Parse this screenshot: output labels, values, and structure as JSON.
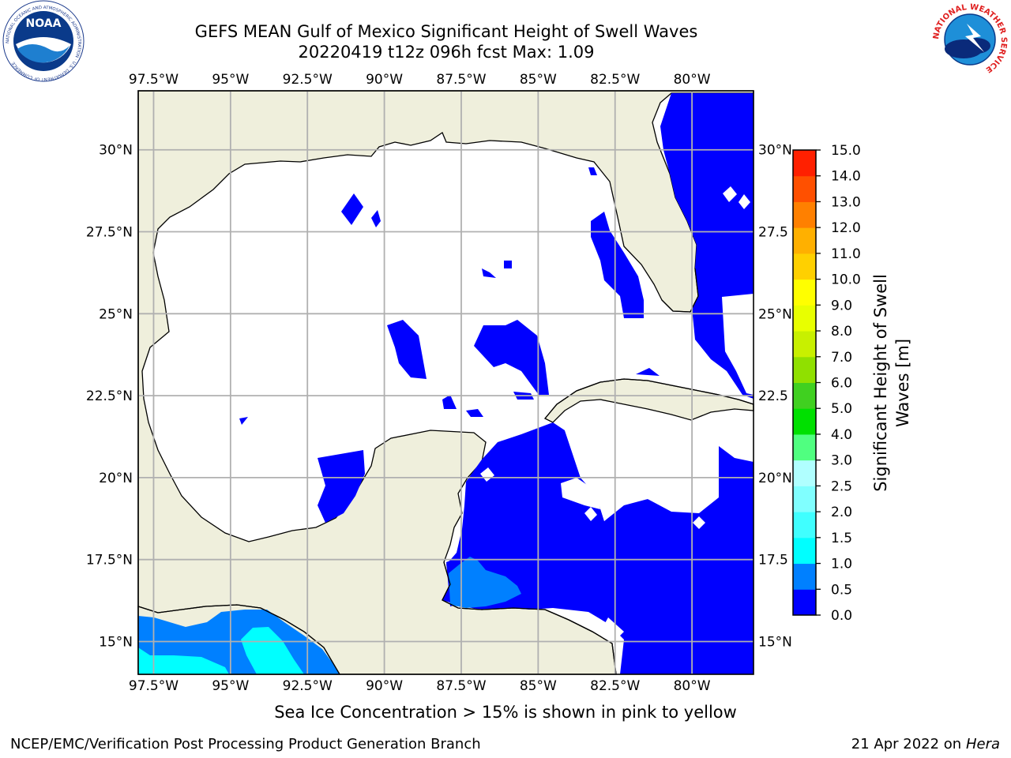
{
  "title_line1": "GEFS MEAN Gulf of Mexico Significant Height of Swell Waves",
  "title_line2": "20220419 t12z 096h fcst   Max: 1.09",
  "map": {
    "lon_labels": [
      "97.5°W",
      "95°W",
      "92.5°W",
      "90°W",
      "87.5°W",
      "85°W",
      "82.5°W",
      "80°W"
    ],
    "lat_labels": [
      "30°N",
      "27.5°N",
      "25°N",
      "22.5°N",
      "20°N",
      "17.5°N",
      "15°N"
    ],
    "right_lat_labels": [
      "30°N",
      "27.5",
      "25°N",
      "22.5",
      "20°N",
      "17.5",
      "15°N"
    ],
    "lon_range": [
      -98,
      -78
    ],
    "lat_range": [
      14,
      31.8
    ],
    "land_color": "#efefdc",
    "ocean_color": "#ffffff",
    "grid": true
  },
  "colorbar": {
    "label_line1": "Significant Height of Swell",
    "label_line2": "Waves [m]",
    "ticks": [
      "0.0",
      "0.5",
      "1.0",
      "1.5",
      "2.0",
      "2.5",
      "3.0",
      "4.0",
      "5.0",
      "6.0",
      "7.0",
      "8.0",
      "9.0",
      "10.0",
      "11.0",
      "12.0",
      "13.0",
      "14.0",
      "15.0"
    ],
    "colors": [
      "#0000ff",
      "#0080ff",
      "#00ffff",
      "#40ffff",
      "#80ffff",
      "#b0ffff",
      "#50ff80",
      "#00e000",
      "#40d020",
      "#90e000",
      "#c8f000",
      "#e8ff00",
      "#ffff00",
      "#ffd000",
      "#ffb000",
      "#ff8000",
      "#ff5000",
      "#ff2000",
      "#ff0000"
    ]
  },
  "note": "Sea Ice Concentration > 15% is shown in pink to yellow",
  "footer": {
    "left": "NCEP/EMC/Verification Post Processing Product Generation Branch",
    "right_date": "21 Apr 2022 on ",
    "right_host": "Hera"
  },
  "logos": {
    "noaa_text": "NOAA",
    "noaa_ring_text": "NATIONAL OCEANIC AND ATMOSPHERIC ADMINISTRATION · U.S. DEPARTMENT OF COMMERCE",
    "nws_ring_text": "NATIONAL WEATHER SERVICE"
  }
}
